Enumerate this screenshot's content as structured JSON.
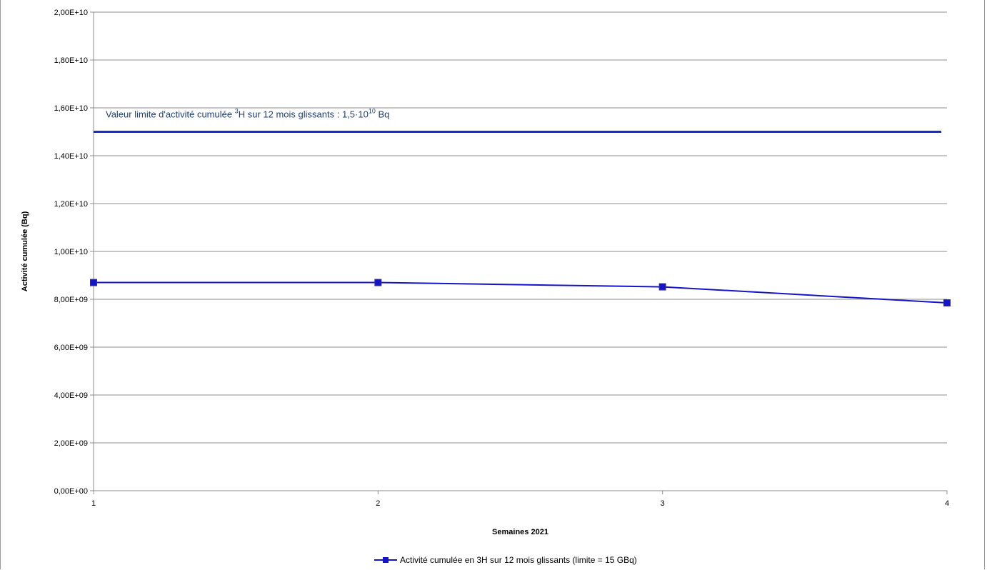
{
  "chart_data": {
    "type": "line",
    "title": "",
    "xlabel": "Semaines 2021",
    "ylabel": "Activité cumulée (Bq)",
    "x": [
      1,
      2,
      3,
      4
    ],
    "x_tick_labels": [
      "1",
      "2",
      "3",
      "4"
    ],
    "ylim": [
      0,
      20000000000
    ],
    "y_ticks": [
      0,
      2000000000,
      4000000000,
      6000000000,
      8000000000,
      10000000000,
      12000000000,
      14000000000,
      16000000000,
      18000000000,
      20000000000
    ],
    "y_tick_labels": [
      "0,00E+00",
      "2,00E+09",
      "4,00E+09",
      "6,00E+09",
      "8,00E+09",
      "1,00E+10",
      "1,20E+10",
      "1,40E+10",
      "1,60E+10",
      "1,80E+10",
      "2,00E+10"
    ],
    "grid": true,
    "legend_position": "bottom",
    "series": [
      {
        "name": "Activité cumulée en 3H sur 12 mois glissants (limite = 15 GBq)",
        "values": [
          8700000000,
          8700000000,
          8520000000,
          7850000000
        ],
        "color": "#1515c8",
        "marker": "square"
      }
    ],
    "limit_line": {
      "value": 15000000000,
      "color": "#1530c8",
      "label_prefix": "Valeur limite d'activité cumulée ",
      "label_sup1": "3",
      "label_mid": "H sur 12 mois  glissants : 1,5·10",
      "label_sup2": "10",
      "label_suffix": " Bq"
    }
  }
}
